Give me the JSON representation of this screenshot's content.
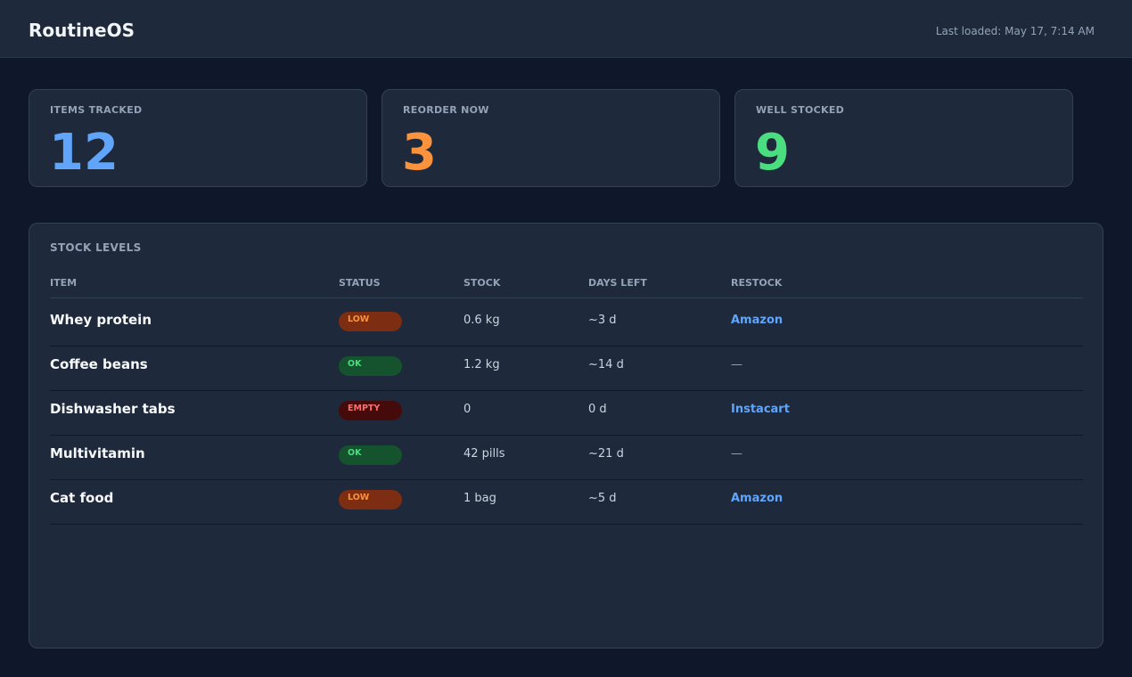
{
  "header": {
    "title": "RoutineOS",
    "last_loaded": "Last loaded: May 17, 7:14 AM"
  },
  "stats": [
    {
      "label": "ITEMS TRACKED",
      "value": "12",
      "color": "#60a5fa"
    },
    {
      "label": "REORDER NOW",
      "value": "3",
      "color": "#fb923c"
    },
    {
      "label": "WELL STOCKED",
      "value": "9",
      "color": "#4ade80"
    }
  ],
  "table": {
    "title": "STOCK LEVELS",
    "columns": [
      "ITEM",
      "STATUS",
      "STOCK",
      "DAYS LEFT",
      "RESTOCK"
    ],
    "rows": [
      {
        "item": "Whey protein",
        "status": "LOW",
        "badge": {
          "color": "#fb923c",
          "background": "#7c2d12"
        },
        "stock": "0.6 kg",
        "days_left": "~3 d",
        "restock": "Amazon",
        "restock_is_link": true
      },
      {
        "item": "Coffee beans",
        "status": "OK",
        "badge": {
          "color": "#4ade80",
          "background": "#14532d"
        },
        "stock": "1.2 kg",
        "days_left": "~14 d",
        "restock": "—",
        "restock_is_link": false
      },
      {
        "item": "Dishwasher tabs",
        "status": "EMPTY",
        "badge": {
          "color": "#f87171",
          "background": "#450a0a"
        },
        "stock": "0",
        "days_left": "0 d",
        "restock": "Instacart",
        "restock_is_link": true
      },
      {
        "item": "Multivitamin",
        "status": "OK",
        "badge": {
          "color": "#4ade80",
          "background": "#14532d"
        },
        "stock": "42 pills",
        "days_left": "~21 d",
        "restock": "—",
        "restock_is_link": false
      },
      {
        "item": "Cat food",
        "status": "LOW",
        "badge": {
          "color": "#fb923c",
          "background": "#7c2d12"
        },
        "stock": "1 bag",
        "days_left": "~5 d",
        "restock": "Amazon",
        "restock_is_link": true
      }
    ]
  }
}
